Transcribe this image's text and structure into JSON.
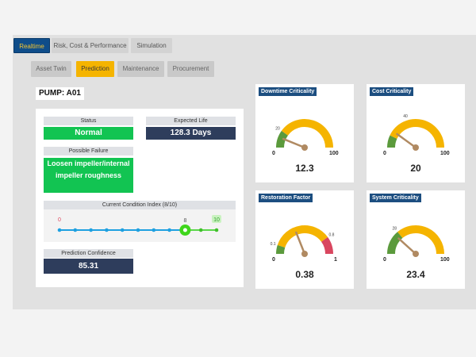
{
  "top_tabs": [
    {
      "label": "Realtime",
      "active": true
    },
    {
      "label": "Risk, Cost & Performance",
      "active": false
    },
    {
      "label": "Simulation",
      "active": false
    }
  ],
  "sub_tabs": [
    {
      "label": "Asset Twin",
      "active": false
    },
    {
      "label": "Prediction",
      "active": true
    },
    {
      "label": "Maintenance",
      "active": false
    },
    {
      "label": "Procurement",
      "active": false
    }
  ],
  "pump_title": "PUMP: A01",
  "status": {
    "label": "Status",
    "value": "Normal"
  },
  "expected_life": {
    "label": "Expected Life",
    "value": "128.3 Days"
  },
  "possible_failure": {
    "label": "Possible Failure",
    "value": "Loosen impeller/internal impeller roughness"
  },
  "condition_index": {
    "label": "Current Condition Index (8/10)",
    "min_label": "0",
    "max_label": "10",
    "current_label": "8",
    "value": 8,
    "max": 10
  },
  "prediction_confidence": {
    "label": "Prediction Confidence",
    "value": "85.31"
  },
  "gauges": [
    {
      "title": "Downtime Criticality",
      "min": "0",
      "max": "100",
      "value": "12.3",
      "fraction": 0.123,
      "threshold_label": "20",
      "threshold_fraction": 0.2,
      "zones": [
        {
          "color": "#5b9a3c",
          "to": 0.2
        },
        {
          "color": "#f5b400",
          "to": 1.0
        }
      ]
    },
    {
      "title": "Cost Criticality",
      "min": "0",
      "max": "100",
      "value": "20",
      "fraction": 0.2,
      "threshold_label": "40",
      "threshold_fraction": 0.4,
      "zones": [
        {
          "color": "#5b9a3c",
          "to": 0.14
        },
        {
          "color": "#f5b400",
          "to": 1.0
        }
      ]
    },
    {
      "title": "Restoration Factor",
      "min": "0",
      "max": "1",
      "value": "0.38",
      "fraction": 0.38,
      "low_label": "0.1",
      "high_label": "0.8",
      "zones": [
        {
          "color": "#5b9a3c",
          "to": 0.1
        },
        {
          "color": "#f5b400",
          "to": 0.8
        },
        {
          "color": "#d9465f",
          "to": 1.0
        }
      ]
    },
    {
      "title": "System Criticality",
      "min": "0",
      "max": "100",
      "value": "23.4",
      "fraction": 0.234,
      "threshold_label": "28",
      "threshold_fraction": 0.28,
      "zones": [
        {
          "color": "#5b9a3c",
          "to": 0.28
        },
        {
          "color": "#f5b400",
          "to": 1.0
        }
      ]
    }
  ],
  "colors": {
    "brand": "#0f4d8a",
    "accent": "#f5b400",
    "good": "#12c452",
    "navy": "#2e3d5c",
    "slider": "#1ea0e0",
    "current": "#3fd61c"
  }
}
